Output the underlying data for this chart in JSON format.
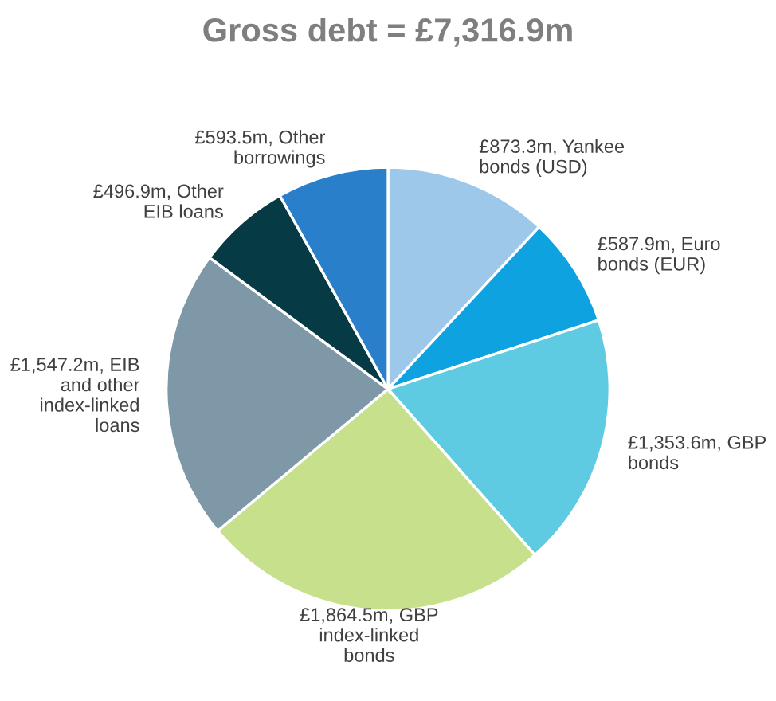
{
  "chart_data": {
    "type": "pie",
    "title": "Gross debt = £7,316.9m",
    "categories": [
      "£873.3m, Yankee bonds (USD)",
      "£587.9m, Euro bonds (EUR)",
      "£1,353.6m, GBP bonds",
      "£1,864.5m, GBP index-linked bonds",
      "£1,547.2m, EIB and other index-linked loans",
      "£496.9m, Other EIB loans",
      "£593.5m, Other borrowings"
    ],
    "values": [
      873.3,
      587.9,
      1353.6,
      1864.5,
      1547.2,
      496.9,
      593.5
    ],
    "colors": [
      "#9dc8ea",
      "#0fa2e0",
      "#5ecbe3",
      "#c6e08c",
      "#7e98a8",
      "#063a45",
      "#2a7fca"
    ],
    "legend": false
  }
}
